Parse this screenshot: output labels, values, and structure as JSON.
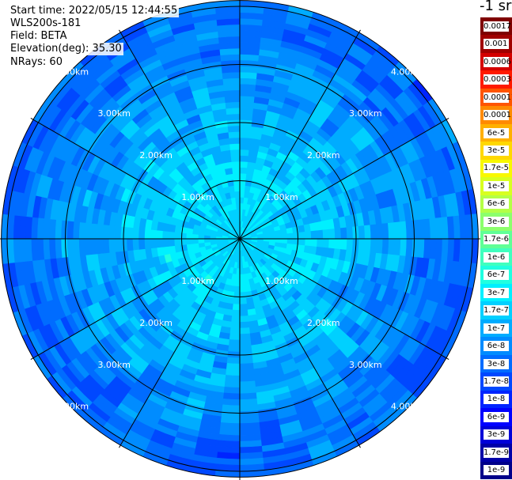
{
  "info": {
    "start_time": "Start time: 2022/05/15 12:44:55",
    "instrument": "WLS200s-181",
    "field": "Field: BETA",
    "elevation": "Elevation(deg): 35.30",
    "nrays": "NRays: 60"
  },
  "colorbar": {
    "unit": "-1 sr",
    "labels": [
      "0.0017",
      "0.001",
      "0.0006",
      "0.0003",
      "0.00017",
      "0.0001",
      "6e-5",
      "3e-5",
      "1.7e-5",
      "1e-5",
      "6e-6",
      "3e-6",
      "1.7e-6",
      "1e-6",
      "6e-7",
      "3e-7",
      "1.7e-7",
      "1e-7",
      "6e-8",
      "3e-8",
      "1.7e-8",
      "1e-8",
      "6e-9",
      "3e-9",
      "1.7e-9",
      "1e-9"
    ],
    "colors": [
      "#7f0000",
      "#a00000",
      "#d40000",
      "#ff1a00",
      "#ff5500",
      "#ff8a00",
      "#ffb000",
      "#ffd800",
      "#f8f800",
      "#d8ff20",
      "#b4ff46",
      "#8cff6c",
      "#60ff96",
      "#40ffbe",
      "#20ffe0",
      "#00f0ff",
      "#00d0ff",
      "#00acff",
      "#008cff",
      "#006cff",
      "#0048ff",
      "#0024ff",
      "#0000ff",
      "#0000d8",
      "#0000a8",
      "#00008a"
    ]
  },
  "chart_data": {
    "type": "heatmap",
    "projection": "polar PPI (plan position indicator)",
    "field": "BETA",
    "elevation_deg": 35.3,
    "n_rays": 60,
    "range_rings_km": [
      1,
      2,
      3,
      4
    ],
    "max_range_km": 4.1,
    "azimuth_spoke_step_deg": 30,
    "ring_labels": [
      "1.00km",
      "2.00km",
      "3.00km",
      "4.00km"
    ],
    "color_scale": "log",
    "value_range": [
      1e-09,
      0.0017
    ],
    "radial_profile": [
      {
        "range_km": 0.5,
        "beta": 2e-07
      },
      {
        "range_km": 1.0,
        "beta": 2e-07
      },
      {
        "range_km": 1.5,
        "beta": 1.5e-07
      },
      {
        "range_km": 2.0,
        "beta": 1.1e-07
      },
      {
        "range_km": 2.5,
        "beta": 8e-08
      },
      {
        "range_km": 3.0,
        "beta": 6e-08
      },
      {
        "range_km": 3.5,
        "beta": 4e-08
      },
      {
        "range_km": 4.0,
        "beta": 3e-08
      }
    ],
    "grid": true,
    "legend": "right colorbar"
  }
}
